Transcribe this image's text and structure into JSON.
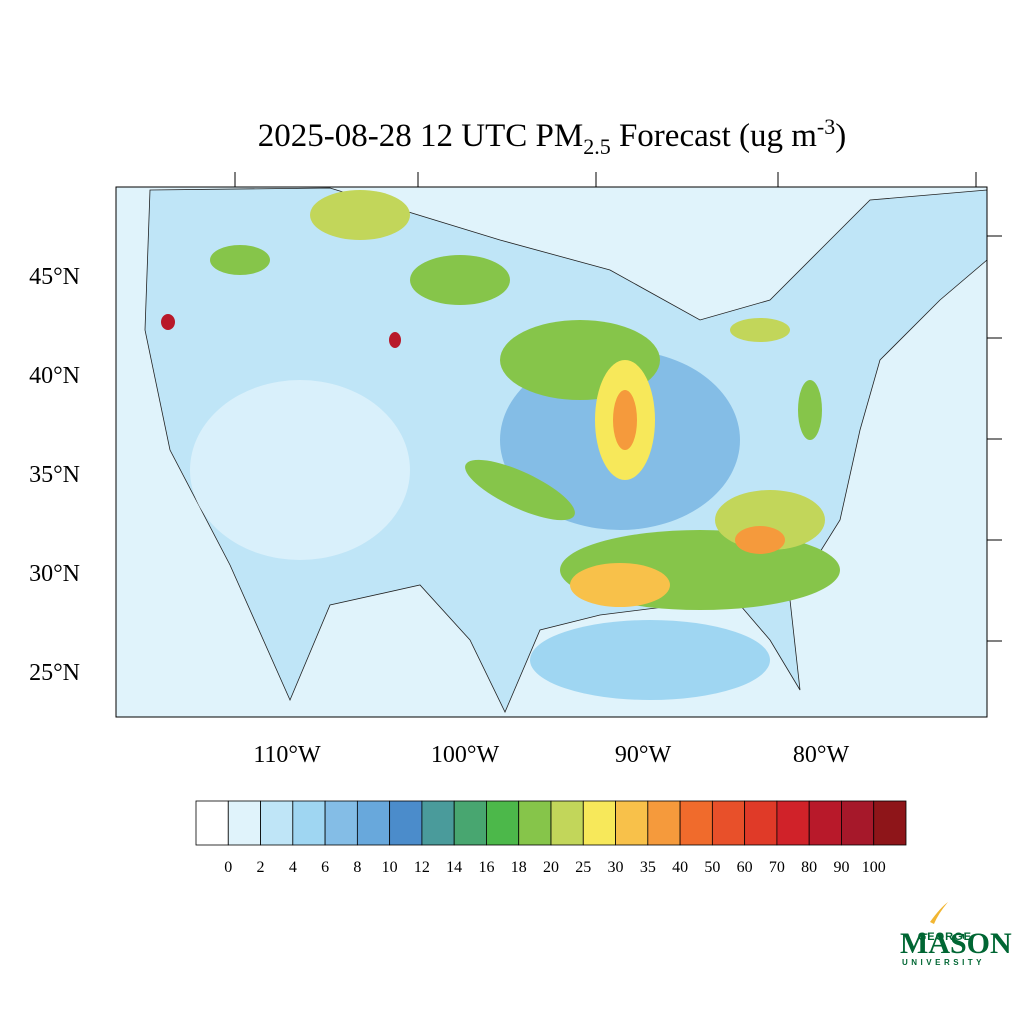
{
  "header": {
    "title_main": "2025-08-28 12 UTC PM",
    "title_sub": "2.5",
    "title_rest": " Forecast (ug m",
    "title_sup": "-3",
    "title_end": ")"
  },
  "map": {
    "lat_labels": [
      "45°N",
      "40°N",
      "35°N",
      "30°N",
      "25°N"
    ],
    "lon_labels": [
      "110°W",
      "100°W",
      "90°W",
      "80°W"
    ]
  },
  "colorbar": {
    "levels": [
      0,
      2,
      4,
      6,
      8,
      10,
      12,
      14,
      16,
      18,
      20,
      25,
      30,
      35,
      40,
      50,
      60,
      70,
      80,
      90,
      100
    ],
    "colors": [
      "#ffffff",
      "#e0f3fb",
      "#bfe5f7",
      "#9fd6f2",
      "#84bde6",
      "#68a8dc",
      "#4b8ccb",
      "#4a9b9b",
      "#48a670",
      "#4cb84a",
      "#86c54a",
      "#c2d65a",
      "#f7e85a",
      "#f8c14a",
      "#f59a3c",
      "#f06b2c",
      "#e8502a",
      "#e03a28",
      "#d02229",
      "#b8192a",
      "#a6182a",
      "#8e1519"
    ]
  },
  "logo": {
    "top": "GEORGE",
    "main": "MASON",
    "bottom": "UNIVERSITY"
  }
}
